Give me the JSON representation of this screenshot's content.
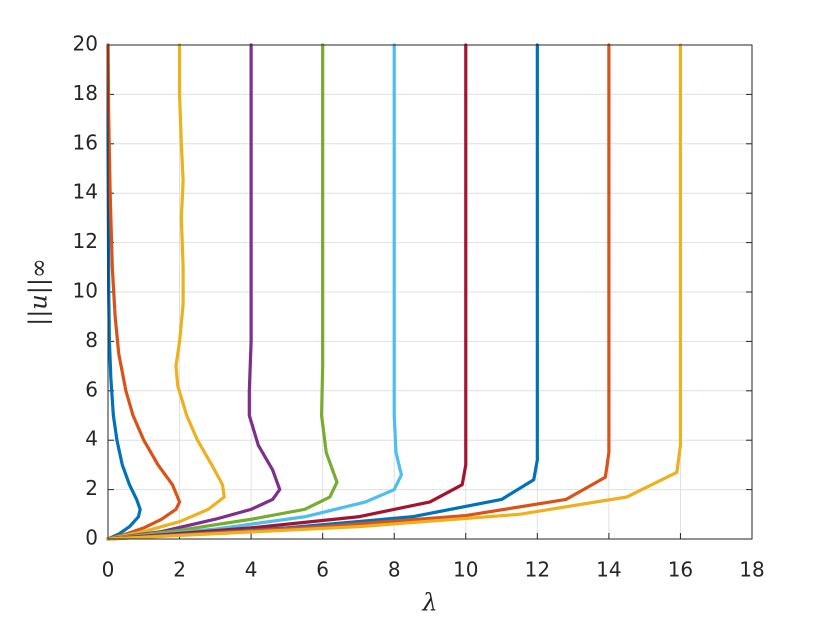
{
  "chart_data": {
    "type": "line",
    "xlabel": "λ",
    "ylabel": "||u||∞",
    "xlim": [
      0,
      18
    ],
    "xticks": [
      0,
      2,
      4,
      6,
      8,
      10,
      12,
      14,
      16,
      18
    ],
    "ylim": [
      0,
      20
    ],
    "yticks": [
      0,
      2,
      4,
      6,
      8,
      10,
      12,
      14,
      16,
      18,
      20
    ],
    "grid": true,
    "series": [
      {
        "color": "#0072BD",
        "x": [
          0,
          0.3,
          0.6,
          0.85,
          0.9,
          0.8,
          0.6,
          0.4,
          0.25,
          0.15,
          0.08,
          0.04,
          0.02,
          0.01,
          0,
          0
        ],
        "values": [
          0,
          0.2,
          0.5,
          0.9,
          1.2,
          1.6,
          2.2,
          3,
          4,
          5,
          6.5,
          8,
          10,
          13,
          16,
          20
        ]
      },
      {
        "color": "#D95319",
        "x": [
          0,
          0.5,
          1,
          1.5,
          1.9,
          2,
          1.8,
          1.4,
          1,
          0.7,
          0.5,
          0.3,
          0.2,
          0.12,
          0.06,
          0.02,
          0
        ],
        "values": [
          0,
          0.2,
          0.45,
          0.8,
          1.2,
          1.5,
          2.2,
          3,
          4,
          5,
          6,
          7.5,
          9,
          11,
          14,
          17,
          20
        ]
      },
      {
        "color": "#EDB120",
        "x": [
          0,
          1,
          2,
          2.8,
          3.25,
          3.2,
          2.9,
          2.5,
          2.2,
          1.95,
          1.9,
          2,
          2.1,
          2.1,
          2.05,
          2.1,
          2.05,
          2,
          2
        ],
        "values": [
          0,
          0.3,
          0.7,
          1.2,
          1.7,
          2.2,
          3,
          4,
          5,
          6.2,
          7,
          8,
          9.5,
          11,
          13,
          14.5,
          16,
          18,
          20
        ]
      },
      {
        "color": "#7E2F8E",
        "x": [
          0,
          1.5,
          3,
          4,
          4.6,
          4.8,
          4.6,
          4.2,
          3.95,
          3.95,
          4,
          4,
          4
        ],
        "values": [
          0,
          0.3,
          0.8,
          1.2,
          1.6,
          2,
          2.8,
          3.8,
          5,
          6,
          8,
          12,
          20
        ]
      },
      {
        "color": "#77AC30",
        "x": [
          0,
          2,
          4,
          5.5,
          6.2,
          6.4,
          6.1,
          5.97,
          6,
          6
        ],
        "values": [
          0,
          0.35,
          0.8,
          1.2,
          1.7,
          2.3,
          3.5,
          5,
          7,
          20
        ]
      },
      {
        "color": "#4DBEEE",
        "x": [
          0,
          3,
          5.5,
          7.2,
          8,
          8.2,
          8.05,
          8,
          8
        ],
        "values": [
          0,
          0.4,
          0.9,
          1.5,
          2,
          2.6,
          3.5,
          5,
          20
        ]
      },
      {
        "color": "#A2142F",
        "x": [
          0,
          4,
          7,
          9,
          9.9,
          10,
          10
        ],
        "values": [
          0,
          0.45,
          0.9,
          1.5,
          2.2,
          3,
          20
        ]
      },
      {
        "color": "#0072BD",
        "x": [
          0,
          5,
          8.5,
          11,
          11.9,
          12,
          12
        ],
        "values": [
          0,
          0.45,
          0.9,
          1.6,
          2.4,
          3.2,
          20
        ]
      },
      {
        "color": "#D95319",
        "x": [
          0,
          6,
          10,
          12.8,
          13.9,
          14,
          14
        ],
        "values": [
          0,
          0.5,
          0.95,
          1.6,
          2.5,
          3.5,
          20
        ]
      },
      {
        "color": "#EDB120",
        "x": [
          0,
          7,
          11.5,
          14.5,
          15.9,
          16,
          16
        ],
        "values": [
          0,
          0.5,
          1,
          1.7,
          2.7,
          3.8,
          20
        ]
      }
    ]
  }
}
